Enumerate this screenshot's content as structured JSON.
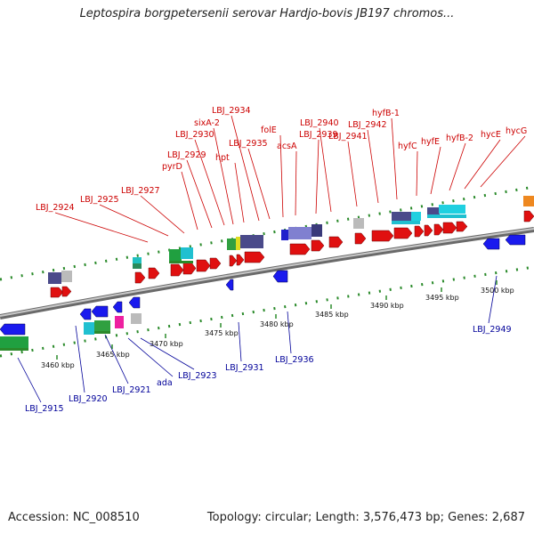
{
  "title": "Leptospira borgpetersenii serovar Hardjo-bovis JB197 chromos...",
  "accession": "Accession: NC_008510",
  "topology": "Topology: circular; Length: 3,576,473 bp; Genes: 2,687",
  "colors": {
    "forward_label": "#cc0000",
    "reverse_label": "#000099",
    "backbone": "#999999",
    "dots": "#2a8a2a"
  },
  "scale_ticks": [
    {
      "label": "3460 kbp"
    },
    {
      "label": "3465 kbp"
    },
    {
      "label": "3470 kbp"
    },
    {
      "label": "3475 kbp"
    },
    {
      "label": "3480 kbp"
    },
    {
      "label": "3485 kbp"
    },
    {
      "label": "3490 kbp"
    },
    {
      "label": "3495 kbp"
    },
    {
      "label": "3500 kbp"
    }
  ],
  "forward_genes": [
    "LBJ_2924",
    "LBJ_2925",
    "LBJ_2927",
    "pyrD",
    "LBJ_2929",
    "LBJ_2930",
    "sixA-2",
    "hpt",
    "LBJ_2934",
    "LBJ_2935",
    "folE",
    "acsA",
    "LBJ_2939",
    "LBJ_2940",
    "LBJ_2941",
    "LBJ_2942",
    "hyfB-1",
    "hyfC",
    "hyfE",
    "hyfB-2",
    "hycE",
    "hycG"
  ],
  "reverse_genes": [
    "LBJ_2915",
    "LBJ_2920",
    "LBJ_2921",
    "ada",
    "LBJ_2923",
    "LBJ_2931",
    "LBJ_2936",
    "LBJ_2949"
  ]
}
